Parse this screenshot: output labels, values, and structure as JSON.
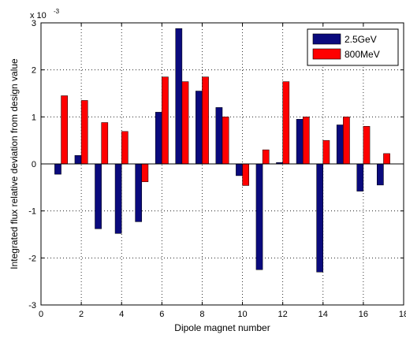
{
  "chart_data": {
    "type": "bar",
    "xlabel": "Dipole magnet number",
    "ylabel": "Integrated flux relative deviation from design value",
    "y_scale_label": "x 10",
    "y_scale_exponent": "-3",
    "xlim": [
      0,
      18
    ],
    "ylim": [
      -3,
      3
    ],
    "x_ticks": [
      0,
      2,
      4,
      6,
      8,
      10,
      12,
      14,
      16,
      18
    ],
    "y_ticks": [
      -3,
      -2,
      -1,
      0,
      1,
      2,
      3
    ],
    "grid": true,
    "legend_position": "top-right",
    "categories": [
      1,
      2,
      3,
      4,
      5,
      6,
      7,
      8,
      9,
      10,
      11,
      12,
      13,
      14,
      15,
      16,
      17
    ],
    "series": [
      {
        "name": "2.5GeV",
        "color": "#0a0a7d",
        "values": [
          -0.22,
          0.18,
          -1.38,
          -1.48,
          -1.23,
          1.1,
          2.88,
          1.55,
          1.2,
          -0.25,
          -2.25,
          0.03,
          0.95,
          -2.3,
          0.83,
          -0.58,
          -0.45
        ]
      },
      {
        "name": "800MeV",
        "color": "#ff0000",
        "values": [
          1.45,
          1.35,
          0.88,
          0.69,
          -0.38,
          1.85,
          1.75,
          1.85,
          1.0,
          -0.46,
          0.3,
          1.75,
          1.0,
          0.5,
          1.0,
          0.8,
          0.22
        ]
      }
    ]
  }
}
